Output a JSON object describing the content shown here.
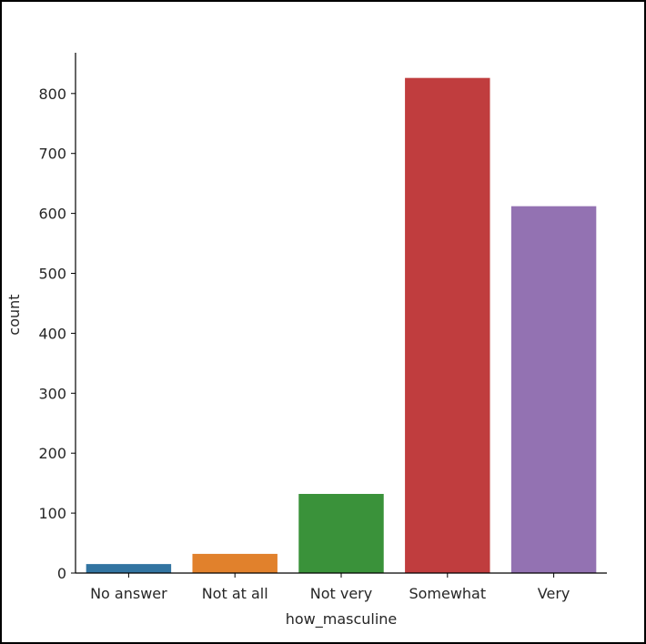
{
  "chart_data": {
    "type": "bar",
    "categories": [
      "No answer",
      "Not at all",
      "Not very",
      "Somewhat",
      "Very"
    ],
    "values": [
      15,
      32,
      132,
      826,
      612
    ],
    "colors": [
      "#3274a1",
      "#e1812c",
      "#3a923a",
      "#c03d3e",
      "#9372b2"
    ],
    "xlabel": "how_masculine",
    "ylabel": "count",
    "ylim": [
      0,
      868
    ],
    "yticks": [
      0,
      100,
      200,
      300,
      400,
      500,
      600,
      700,
      800
    ],
    "grid": false,
    "legend": "none"
  }
}
